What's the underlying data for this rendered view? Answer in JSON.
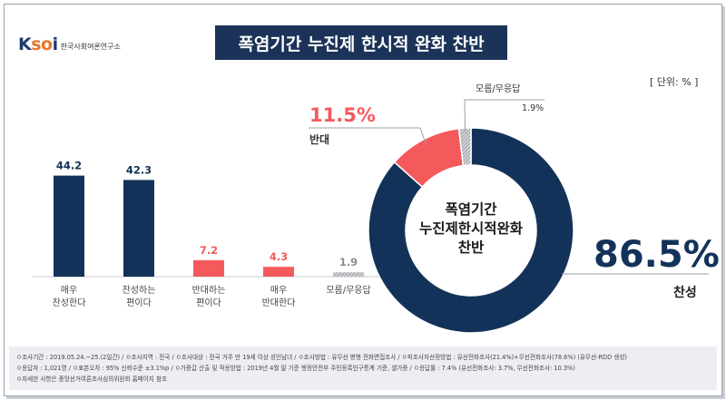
{
  "logo": {
    "mark_k": "K",
    "mark_so": "so",
    "mark_i": "i",
    "name": "한국사회여론연구소"
  },
  "title": "폭염기간 누진제 한시적 완화 찬반",
  "unit_label": "[ 단위: % ]",
  "colors": {
    "navy": "#133259",
    "red": "#f45a5c",
    "grey": "#b9bcc0",
    "title_bg": "#1b3358"
  },
  "chart_data": [
    {
      "type": "bar",
      "categories": [
        [
          "매우",
          "찬성한다"
        ],
        [
          "찬성하는",
          "편이다"
        ],
        [
          "반대하는",
          "편이다"
        ],
        [
          "매우",
          "반대한다"
        ],
        [
          "모름/무응답"
        ]
      ],
      "values": [
        44.2,
        42.3,
        7.2,
        4.3,
        1.9
      ],
      "value_labels": [
        "44.2",
        "42.3",
        "7.2",
        "4.3",
        "1.9"
      ],
      "ylim": [
        0,
        50
      ]
    },
    {
      "type": "pie",
      "donut": true,
      "center_label": [
        "폭염기간",
        "누진제한시적완화",
        "찬반"
      ],
      "slices": [
        {
          "label": "찬성",
          "value": 86.5,
          "value_label": "86.5%"
        },
        {
          "label": "반대",
          "value": 11.5,
          "value_label": "11.5%"
        },
        {
          "label": "모름/무응답",
          "value": 1.9,
          "value_label": "1.9%"
        }
      ]
    }
  ],
  "notes": {
    "line1": "ㅇ조사기간 : 2019.05.24.~25.(2일간) / ㅇ조사지역 : 전국 / ㅇ조사대상 : 전국 거주 만 19세 이상 성인남녀 / ㅇ조사방법 : 유무선 병행 전화면접조사 / ㅇ피조사자선정방법 : 유선전화조사(21.4%)+무선전화조사(78.6%) (유무선-RDD 생성)",
    "line2": "ㅇ응답자 : 1,021명 / ㅇ표본오차 : 95% 신뢰수준 ±3.1%p / ㅇ가중값 산출 및 적용방법 : 2019년 4월 말 기준 행정안전부 주민등록인구통계 기준, 셀가중 / ㅇ응답률 : 7.4% (유선전화조사: 3.7%, 무선전화조사: 10.3%)",
    "line3": "ㅇ자세한 사항은 중앙선거여론조사심의위원회 홈페이지 참조"
  }
}
